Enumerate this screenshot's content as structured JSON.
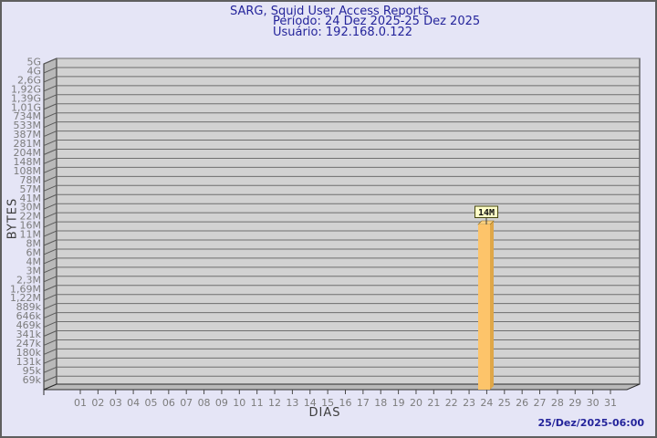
{
  "header": {
    "title": "SARG, Squid User Access Reports",
    "period": "Período: 24 Dez 2025-25 Dez 2025",
    "user": "Usuário: 192.168.0.122"
  },
  "footer": {
    "timestamp": "25/Dez/2025-06:00"
  },
  "chart_data": {
    "type": "bar",
    "title": "SARG, Squid User Access Reports",
    "subtitle": [
      "Período: 24 Dez 2025-25 Dez 2025",
      "Usuário: 192.168.0.122"
    ],
    "xlabel": "DIAS",
    "ylabel": "BYTES",
    "y_scale": "log",
    "grid": "horizontal",
    "legend": null,
    "y_tick_labels": [
      "5G",
      "4G",
      "2,6G",
      "1,92G",
      "1,39G",
      "1,01G",
      "734M",
      "533M",
      "387M",
      "281M",
      "204M",
      "148M",
      "108M",
      "78M",
      "57M",
      "41M",
      "30M",
      "22M",
      "16M",
      "11M",
      "8M",
      "6M",
      "4M",
      "3M",
      "2,3M",
      "1,69M",
      "1,22M",
      "889k",
      "646k",
      "469k",
      "341k",
      "247k",
      "180k",
      "131k",
      "95k",
      "69k"
    ],
    "categories": [
      "01",
      "02",
      "03",
      "04",
      "05",
      "06",
      "07",
      "08",
      "09",
      "10",
      "11",
      "12",
      "13",
      "14",
      "15",
      "16",
      "17",
      "18",
      "19",
      "20",
      "21",
      "22",
      "23",
      "24",
      "25",
      "26",
      "27",
      "28",
      "29",
      "30",
      "31"
    ],
    "series": [
      {
        "name": "bytes",
        "unit": "bytes",
        "values": [
          0,
          0,
          0,
          0,
          0,
          0,
          0,
          0,
          0,
          0,
          0,
          0,
          0,
          0,
          0,
          0,
          0,
          0,
          0,
          0,
          0,
          0,
          0,
          14000000,
          0,
          0,
          0,
          0,
          0,
          0,
          0
        ]
      }
    ],
    "annotations": [
      {
        "category": "24",
        "label": "14M",
        "value_bytes": 14000000
      }
    ],
    "footer_timestamp": "25/Dez/2025-06:00"
  },
  "colors": {
    "background": "#E5E5F6",
    "frame_border": "#5F5F5F",
    "plot_bg": "#D2D2D2",
    "wall": "#B9B9B9",
    "grid": "#6E6E6E",
    "axis": "#2A2A2A",
    "tick_label": "#7C7C7C",
    "axis_label": "#3C3C3C",
    "title": "#24249B",
    "bar_front": "#FDC46A",
    "bar_side": "#DFA748",
    "bar_top": "#FBD07F",
    "annotation_bg": "#FFFFC8",
    "annotation_border": "#45450C",
    "annotation_text": "#101010"
  }
}
